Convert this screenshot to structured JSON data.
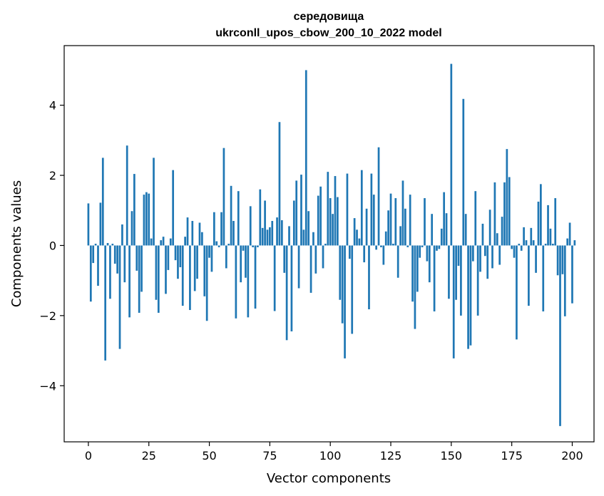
{
  "chart_data": {
    "type": "bar",
    "title_line1": "середовища",
    "title_line2": "ukrconll_upos_cbow_200_10_2022 model",
    "xlabel": "Vector components",
    "ylabel": "Components values",
    "xlim": [
      -10,
      209
    ],
    "ylim": [
      -5.6,
      5.7
    ],
    "xticks": [
      0,
      25,
      50,
      75,
      100,
      125,
      150,
      175,
      200
    ],
    "xtick_labels": [
      "0",
      "25",
      "50",
      "75",
      "100",
      "125",
      "150",
      "175",
      "200"
    ],
    "yticks": [
      -4,
      -2,
      0,
      2,
      4
    ],
    "ytick_labels": [
      "−4",
      "−2",
      "0",
      "2",
      "4"
    ],
    "bar_color": "#1f77b4",
    "values": [
      1.2,
      -1.6,
      -0.5,
      0.05,
      -1.15,
      1.22,
      2.5,
      -3.28,
      0.07,
      -1.52,
      0.05,
      -0.52,
      -0.8,
      -2.95,
      0.6,
      -1.05,
      2.85,
      -2.05,
      0.98,
      2.04,
      -0.72,
      -1.92,
      -1.32,
      1.45,
      1.52,
      1.48,
      0.2,
      2.5,
      -1.55,
      -1.92,
      0.15,
      0.25,
      -1.38,
      -0.7,
      0.2,
      2.15,
      -0.42,
      -0.95,
      -0.62,
      -1.72,
      0.25,
      0.8,
      -1.84,
      0.7,
      -1.3,
      -0.95,
      0.65,
      0.38,
      -1.45,
      -2.15,
      -0.35,
      -0.75,
      0.95,
      0.12,
      -0.05,
      0.95,
      2.78,
      -0.65,
      0.05,
      1.7,
      0.7,
      -2.08,
      1.55,
      -1.05,
      -0.15,
      -0.92,
      -2.05,
      1.12,
      -0.05,
      -1.8,
      -0.05,
      1.6,
      0.5,
      1.28,
      0.45,
      0.52,
      0.7,
      -1.87,
      0.8,
      3.52,
      0.72,
      -0.78,
      -2.7,
      0.55,
      -2.45,
      1.28,
      1.85,
      -1.22,
      2.02,
      0.45,
      5.0,
      0.98,
      -1.35,
      0.38,
      -0.8,
      1.42,
      1.68,
      -0.65,
      0.05,
      2.1,
      1.35,
      0.9,
      1.98,
      1.38,
      -1.55,
      -2.22,
      -3.22,
      2.05,
      -0.38,
      -2.52,
      0.78,
      0.45,
      0.2,
      2.15,
      -0.48,
      1.05,
      -1.82,
      2.05,
      1.45,
      -0.12,
      2.8,
      -0.05,
      -0.55,
      0.4,
      1.0,
      1.48,
      0.05,
      1.35,
      -0.92,
      0.55,
      1.85,
      1.05,
      -0.05,
      1.45,
      -1.6,
      -2.38,
      -1.32,
      -0.35,
      -0.05,
      1.35,
      -0.45,
      -1.05,
      0.9,
      -1.88,
      -0.15,
      -0.1,
      0.48,
      1.52,
      0.92,
      -1.52,
      5.18,
      -3.22,
      -1.55,
      -0.58,
      -2.0,
      4.18,
      0.9,
      -2.95,
      -2.85,
      -0.45,
      1.55,
      -2.0,
      -0.75,
      0.62,
      -0.3,
      -0.95,
      1.02,
      -0.65,
      1.8,
      0.35,
      -0.55,
      0.82,
      1.8,
      2.75,
      1.95,
      -0.1,
      -0.35,
      -2.68,
      0.05,
      -0.15,
      0.52,
      0.15,
      -1.72,
      0.5,
      0.15,
      -0.78,
      1.25,
      1.75,
      -1.88,
      0.05,
      1.15,
      0.48,
      0.05,
      1.35,
      -0.85,
      -5.15,
      -0.82,
      -2.02,
      0.2,
      0.65,
      -1.65,
      0.15
    ]
  }
}
